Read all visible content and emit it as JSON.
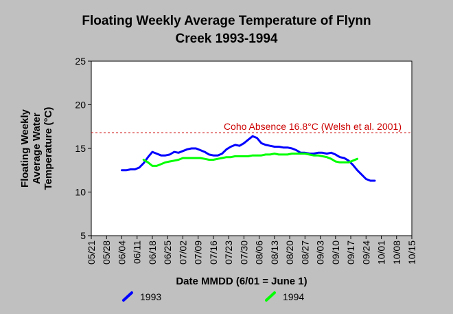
{
  "chart_data": {
    "type": "line",
    "title_line1": "Floating Weekly Average Temperature of Flynn",
    "title_line2": "Creek 1993-1994",
    "xlabel": "Date MMDD (6/01 = June 1)",
    "ylabel_lines": [
      "Floating Weekly",
      "Average Water",
      "Temperature (°C)"
    ],
    "x_ticks": [
      "05/21",
      "05/28",
      "06/04",
      "06/11",
      "06/18",
      "06/25",
      "07/02",
      "07/09",
      "07/16",
      "07/23",
      "07/30",
      "08/06",
      "08/13",
      "08/20",
      "08/27",
      "09/03",
      "09/10",
      "09/17",
      "09/24",
      "10/01",
      "10/08",
      "10/15"
    ],
    "ylim": [
      5,
      25
    ],
    "y_ticks": [
      5,
      10,
      15,
      20,
      25
    ],
    "reference_line": {
      "value": 16.8,
      "label": "Coho Absence 16.8°C (Welsh et al. 2001)",
      "color": "#cc0000"
    },
    "series": [
      {
        "name": "1993",
        "color": "#0000ff",
        "points": [
          [
            "06/04",
            12.5
          ],
          [
            "06/06",
            12.5
          ],
          [
            "06/08",
            12.6
          ],
          [
            "06/10",
            12.6
          ],
          [
            "06/12",
            12.8
          ],
          [
            "06/14",
            13.3
          ],
          [
            "06/16",
            14.0
          ],
          [
            "06/18",
            14.6
          ],
          [
            "06/20",
            14.4
          ],
          [
            "06/22",
            14.2
          ],
          [
            "06/24",
            14.2
          ],
          [
            "06/26",
            14.3
          ],
          [
            "06/28",
            14.6
          ],
          [
            "06/30",
            14.5
          ],
          [
            "07/02",
            14.7
          ],
          [
            "07/04",
            14.9
          ],
          [
            "07/06",
            15.0
          ],
          [
            "07/08",
            15.0
          ],
          [
            "07/10",
            14.8
          ],
          [
            "07/12",
            14.6
          ],
          [
            "07/14",
            14.3
          ],
          [
            "07/16",
            14.2
          ],
          [
            "07/18",
            14.2
          ],
          [
            "07/20",
            14.4
          ],
          [
            "07/22",
            14.9
          ],
          [
            "07/24",
            15.2
          ],
          [
            "07/26",
            15.4
          ],
          [
            "07/28",
            15.3
          ],
          [
            "07/30",
            15.6
          ],
          [
            "08/01",
            16.0
          ],
          [
            "08/03",
            16.4
          ],
          [
            "08/05",
            16.2
          ],
          [
            "08/07",
            15.6
          ],
          [
            "08/09",
            15.4
          ],
          [
            "08/11",
            15.3
          ],
          [
            "08/13",
            15.2
          ],
          [
            "08/15",
            15.2
          ],
          [
            "08/17",
            15.1
          ],
          [
            "08/19",
            15.1
          ],
          [
            "08/21",
            15.0
          ],
          [
            "08/23",
            14.8
          ],
          [
            "08/25",
            14.5
          ],
          [
            "08/27",
            14.5
          ],
          [
            "08/29",
            14.4
          ],
          [
            "08/31",
            14.4
          ],
          [
            "09/02",
            14.5
          ],
          [
            "09/04",
            14.5
          ],
          [
            "09/06",
            14.4
          ],
          [
            "09/08",
            14.5
          ],
          [
            "09/10",
            14.3
          ],
          [
            "09/12",
            14.0
          ],
          [
            "09/14",
            13.9
          ],
          [
            "09/16",
            13.6
          ],
          [
            "09/18",
            13.1
          ],
          [
            "09/20",
            12.5
          ],
          [
            "09/22",
            12.0
          ],
          [
            "09/24",
            11.5
          ],
          [
            "09/26",
            11.3
          ],
          [
            "09/28",
            11.3
          ]
        ]
      },
      {
        "name": "1994",
        "color": "#00ff00",
        "points": [
          [
            "06/14",
            13.7
          ],
          [
            "06/16",
            13.4
          ],
          [
            "06/18",
            13.0
          ],
          [
            "06/20",
            13.0
          ],
          [
            "06/22",
            13.2
          ],
          [
            "06/24",
            13.4
          ],
          [
            "06/26",
            13.5
          ],
          [
            "06/28",
            13.6
          ],
          [
            "06/30",
            13.7
          ],
          [
            "07/02",
            13.9
          ],
          [
            "07/04",
            13.9
          ],
          [
            "07/06",
            13.9
          ],
          [
            "07/08",
            13.9
          ],
          [
            "07/10",
            13.9
          ],
          [
            "07/12",
            13.8
          ],
          [
            "07/14",
            13.7
          ],
          [
            "07/16",
            13.7
          ],
          [
            "07/18",
            13.8
          ],
          [
            "07/20",
            13.9
          ],
          [
            "07/22",
            14.0
          ],
          [
            "07/24",
            14.0
          ],
          [
            "07/26",
            14.1
          ],
          [
            "07/28",
            14.1
          ],
          [
            "07/30",
            14.1
          ],
          [
            "08/01",
            14.1
          ],
          [
            "08/03",
            14.2
          ],
          [
            "08/05",
            14.2
          ],
          [
            "08/07",
            14.2
          ],
          [
            "08/09",
            14.3
          ],
          [
            "08/11",
            14.3
          ],
          [
            "08/13",
            14.4
          ],
          [
            "08/15",
            14.3
          ],
          [
            "08/17",
            14.3
          ],
          [
            "08/19",
            14.3
          ],
          [
            "08/21",
            14.4
          ],
          [
            "08/23",
            14.4
          ],
          [
            "08/25",
            14.4
          ],
          [
            "08/27",
            14.4
          ],
          [
            "08/29",
            14.3
          ],
          [
            "08/31",
            14.2
          ],
          [
            "09/02",
            14.2
          ],
          [
            "09/04",
            14.1
          ],
          [
            "09/06",
            14.0
          ],
          [
            "09/08",
            13.8
          ],
          [
            "09/10",
            13.5
          ],
          [
            "09/12",
            13.4
          ],
          [
            "09/14",
            13.4
          ],
          [
            "09/16",
            13.4
          ],
          [
            "09/18",
            13.6
          ],
          [
            "09/20",
            13.8
          ]
        ]
      }
    ],
    "legend": {
      "placement": "bottom"
    },
    "grid": false
  }
}
